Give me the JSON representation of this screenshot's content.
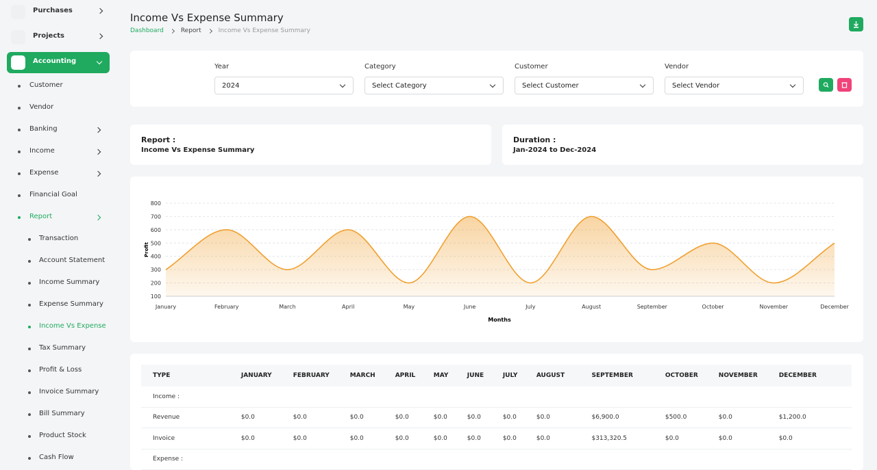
{
  "sidebar": {
    "main": [
      "Purchases",
      "Projects",
      "Accounting"
    ],
    "accounting": [
      "Customer",
      "Vendor",
      "Banking",
      "Income",
      "Expense",
      "Financial Goal",
      "Report"
    ],
    "report": [
      "Transaction",
      "Account Statement",
      "Income Summary",
      "Expense Summary",
      "Income Vs Expense",
      "Tax Summary",
      "Profit & Loss",
      "Invoice Summary",
      "Bill Summary",
      "Product Stock",
      "Cash Flow"
    ]
  },
  "header": {
    "title": "Income Vs Expense Summary",
    "breadcrumb": [
      "Dashboard",
      "Report",
      "Income Vs Expense Summary"
    ]
  },
  "filters": [
    {
      "label": "Year",
      "value": "2024"
    },
    {
      "label": "Category",
      "value": "Select Category"
    },
    {
      "label": "Customer",
      "value": "Select Customer"
    },
    {
      "label": "Vendor",
      "value": "Select Vendor"
    }
  ],
  "report": {
    "label": "Report :",
    "value": "Income Vs Expense Summary"
  },
  "duration": {
    "label": "Duration :",
    "value": "Jan-2024 to Dec-2024"
  },
  "chart_data": {
    "type": "area",
    "x_label": "Months",
    "y_label": "Profit",
    "categories": [
      "January",
      "February",
      "March",
      "April",
      "May",
      "June",
      "July",
      "August",
      "September",
      "October",
      "November",
      "December"
    ],
    "values": [
      300,
      600,
      300,
      600,
      200,
      700,
      200,
      700,
      300,
      500,
      200,
      500
    ],
    "color": "#f0a030",
    "ylim": [
      100,
      800
    ],
    "yticks": [
      100,
      200,
      300,
      400,
      500,
      600,
      700,
      800
    ],
    "grid": true
  },
  "table": {
    "columns": [
      "TYPE",
      "JANUARY",
      "FEBRUARY",
      "MARCH",
      "APRIL",
      "MAY",
      "JUNE",
      "JULY",
      "AUGUST",
      "SEPTEMBER",
      "OCTOBER",
      "NOVEMBER",
      "DECEMBER"
    ],
    "rows": [
      [
        "Income :"
      ],
      [
        "Revenue",
        "$0.0",
        "$0.0",
        "$0.0",
        "$0.0",
        "$0.0",
        "$0.0",
        "$0.0",
        "$0.0",
        "$6,900.0",
        "$500.0",
        "$0.0",
        "$1,200.0"
      ],
      [
        "Invoice",
        "$0.0",
        "$0.0",
        "$0.0",
        "$0.0",
        "$0.0",
        "$0.0",
        "$0.0",
        "$0.0",
        "$313,320.5",
        "$0.0",
        "$0.0",
        "$0.0"
      ],
      [
        "Expense :"
      ]
    ]
  }
}
